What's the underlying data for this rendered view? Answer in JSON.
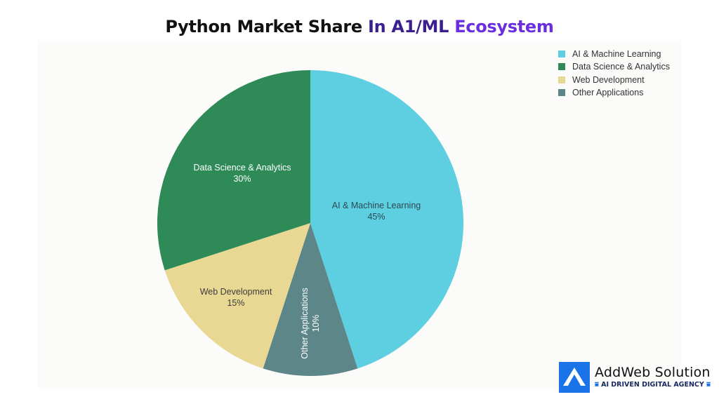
{
  "title": {
    "part1": "Python Market Share",
    "part2": " In A1/ML",
    "part3": " Ecosystem"
  },
  "chart_data": {
    "type": "pie",
    "title": "Python Market Share In A1/ML Ecosystem",
    "categories": [
      "AI & Machine Learning",
      "Other Applications",
      "Web Development",
      "Data Science & Analytics"
    ],
    "values": [
      45,
      10,
      15,
      30
    ],
    "unit": "%",
    "colors": [
      "#5ecfe0",
      "#5d8689",
      "#e8d894",
      "#2e8b57"
    ],
    "label_colors": [
      "#2b4a55",
      "#ffffff",
      "#3d3d3d",
      "#ffffff"
    ],
    "start_angle_deg": 0,
    "direction": "clockwise",
    "legend_position": "top-right",
    "legend": [
      "AI & Machine Learning",
      "Data Science & Analytics",
      "Web Development",
      "Other Applications"
    ],
    "legend_colors": [
      "#5ecfe0",
      "#2e8b57",
      "#e8d894",
      "#5d8689"
    ]
  },
  "labels": {
    "ai": {
      "name": "AI & Machine Learning",
      "value": "45%"
    },
    "other": {
      "name": "Other Applications",
      "value": "10%"
    },
    "web": {
      "name": "Web Development",
      "value": "15%"
    },
    "ds": {
      "name": "Data Science & Analytics",
      "value": "30%"
    }
  },
  "legend": [
    {
      "label": "AI & Machine Learning",
      "color": "#5ecfe0"
    },
    {
      "label": "Data Science & Analytics",
      "color": "#2e8b57"
    },
    {
      "label": "Web Development",
      "color": "#e8d894"
    },
    {
      "label": "Other Applications",
      "color": "#5d8689"
    }
  ],
  "logo": {
    "name": "AddWeb Solution",
    "tagline": "AI DRIVEN DIGITAL AGENCY",
    "color": "#1a73e8"
  }
}
